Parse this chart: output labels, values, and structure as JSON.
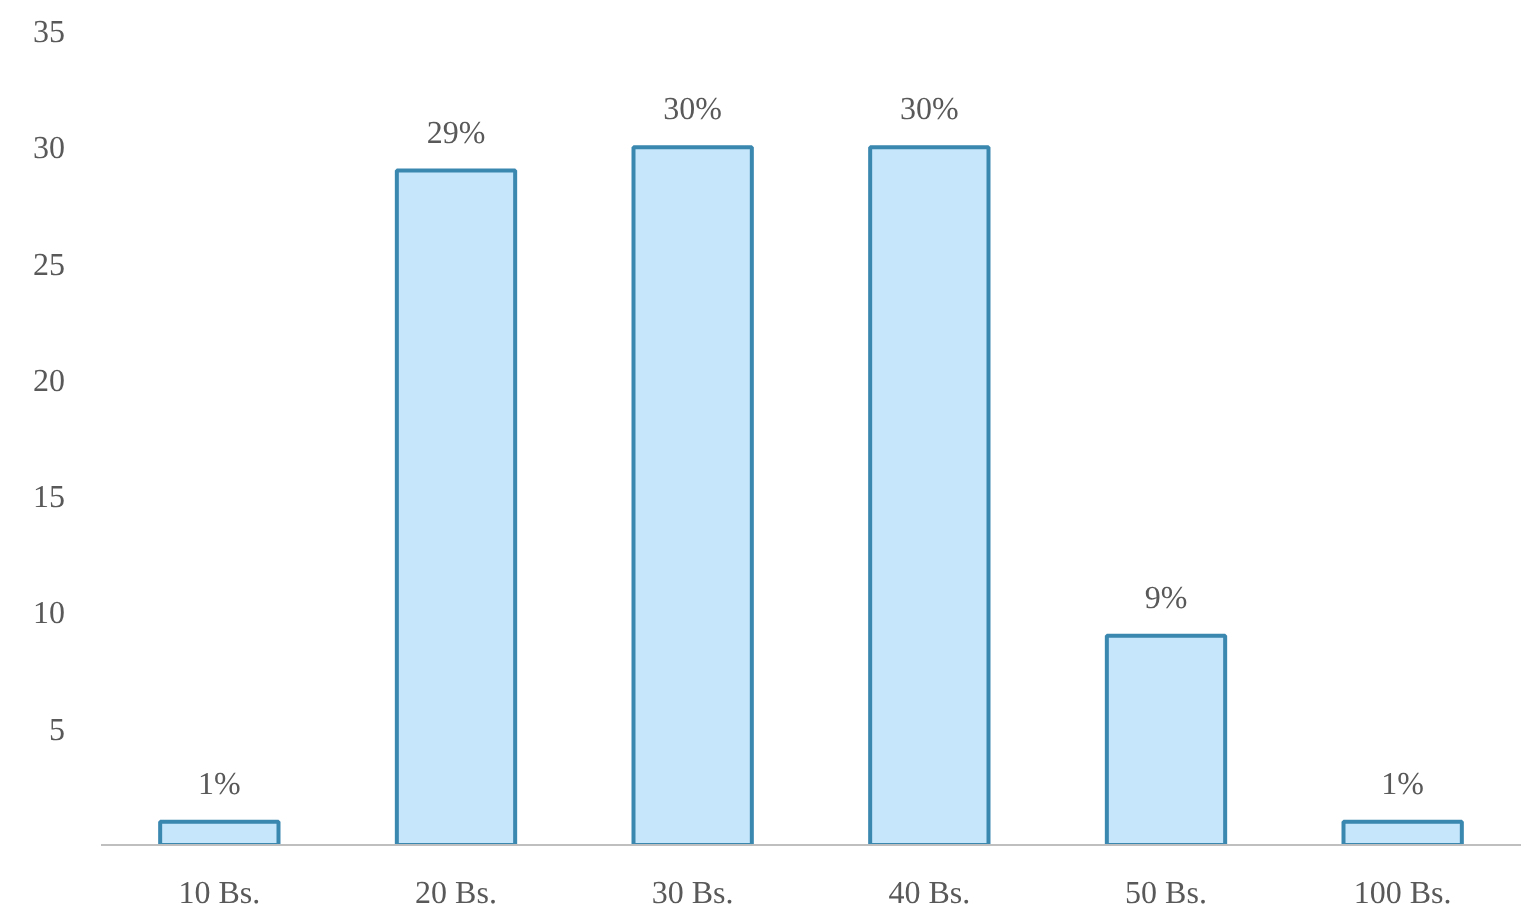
{
  "chart_data": {
    "type": "bar",
    "categories": [
      "10 Bs.",
      "20 Bs.",
      "30 Bs.",
      "40 Bs.",
      "50 Bs.",
      "100 Bs."
    ],
    "values": [
      1,
      29,
      30,
      30,
      9,
      1
    ],
    "value_labels": [
      "1%",
      "29%",
      "30%",
      "30%",
      "9%",
      "1%"
    ],
    "color": "#c6e6fb",
    "ylim": [
      0,
      35
    ],
    "yticks": [
      5,
      10,
      15,
      20,
      25,
      30,
      35
    ],
    "grid": false
  }
}
